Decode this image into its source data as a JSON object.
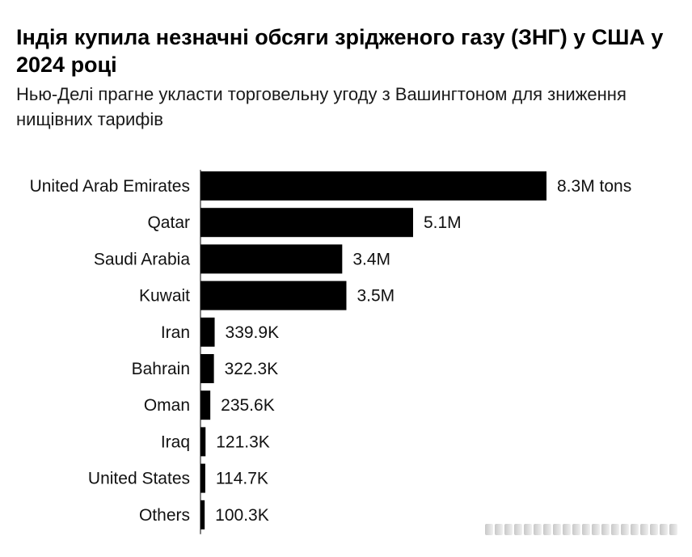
{
  "header": {
    "title": "Індія купила незначні обсяги зрідженого газу (ЗНГ) у США у 2024 році",
    "subtitle": "Нью-Делі прагне укласти торговельну угоду з Вашингтоном для зниження нищівних тарифів"
  },
  "chart_data": {
    "type": "bar",
    "orientation": "horizontal",
    "title": "Індія купила незначні обсяги зрідженого газу (ЗНГ) у США у 2024 році",
    "subtitle": "Нью-Делі прагне укласти торговельну угоду з Вашингтоном для зниження нищівних тарифів",
    "categories": [
      "United Arab Emirates",
      "Qatar",
      "Saudi Arabia",
      "Kuwait",
      "Iran",
      "Bahrain",
      "Oman",
      "Iraq",
      "United States",
      "Others"
    ],
    "values": [
      8300000,
      5100000,
      3400000,
      3500000,
      339900,
      322300,
      235600,
      121300,
      114700,
      100300
    ],
    "value_labels": [
      "8.3M tons",
      "5.1M",
      "3.4M",
      "3.5M",
      "339.9K",
      "322.3K",
      "235.6K",
      "121.3K",
      "114.7K",
      "100.3K"
    ],
    "unit": "tons",
    "bar_color": "#000000",
    "xlim": [
      0,
      8300000
    ],
    "grid": false,
    "legend": "none"
  }
}
